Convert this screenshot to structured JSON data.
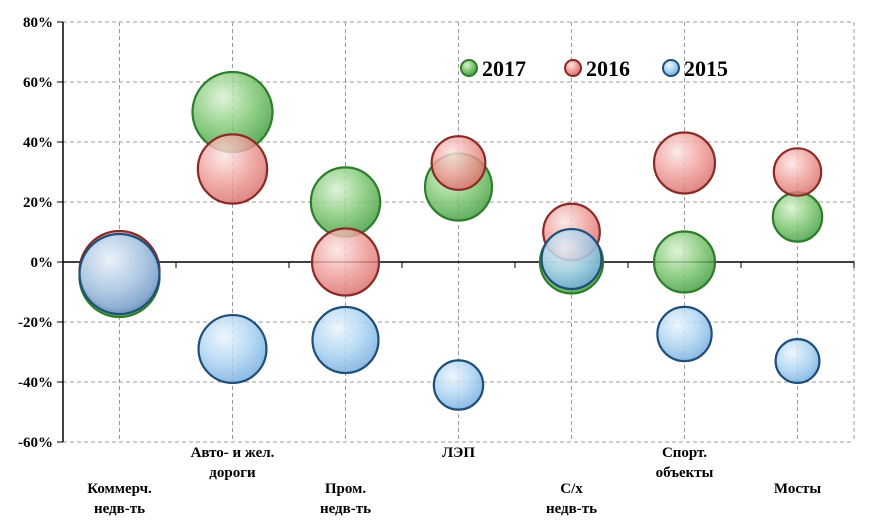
{
  "chart_data": {
    "type": "scatter",
    "subtype": "bubble",
    "title": "",
    "xlabel": "",
    "ylabel": "",
    "ylim": [
      -60,
      80
    ],
    "y_ticks": [
      "80%",
      "60%",
      "40%",
      "20%",
      "0%",
      "-20%",
      "-40%",
      "-60%"
    ],
    "y_tick_values": [
      80,
      60,
      40,
      20,
      0,
      -20,
      -40,
      -60
    ],
    "grid": true,
    "legend_position": "top-right",
    "categories": [
      [
        "Коммерч.",
        "недв-ть"
      ],
      [
        "Авто- и жел.",
        "дороги"
      ],
      [
        "Пром.",
        "недв-ть"
      ],
      [
        "ЛЭП"
      ],
      [
        "С/х",
        "недв-ть"
      ],
      [
        "Спорт.",
        "объекты"
      ],
      [
        "Мосты"
      ]
    ],
    "series": [
      {
        "name": "2015",
        "color": "#5b9bd5",
        "values": [
          -4,
          -29,
          -26,
          -41,
          1,
          -24,
          -33
        ],
        "sizes": [
          100,
          72,
          68,
          38,
          56,
          46,
          30
        ]
      },
      {
        "name": "2016",
        "color": "#e06666",
        "values": [
          -3,
          31,
          0,
          33,
          10,
          33,
          30
        ],
        "sizes": [
          100,
          75,
          70,
          45,
          50,
          58,
          35
        ]
      },
      {
        "name": "2017",
        "color": "#38a33a",
        "values": [
          -5,
          50,
          20,
          25,
          0,
          0,
          15
        ],
        "sizes": [
          100,
          100,
          75,
          70,
          62,
          58,
          38
        ]
      }
    ]
  }
}
